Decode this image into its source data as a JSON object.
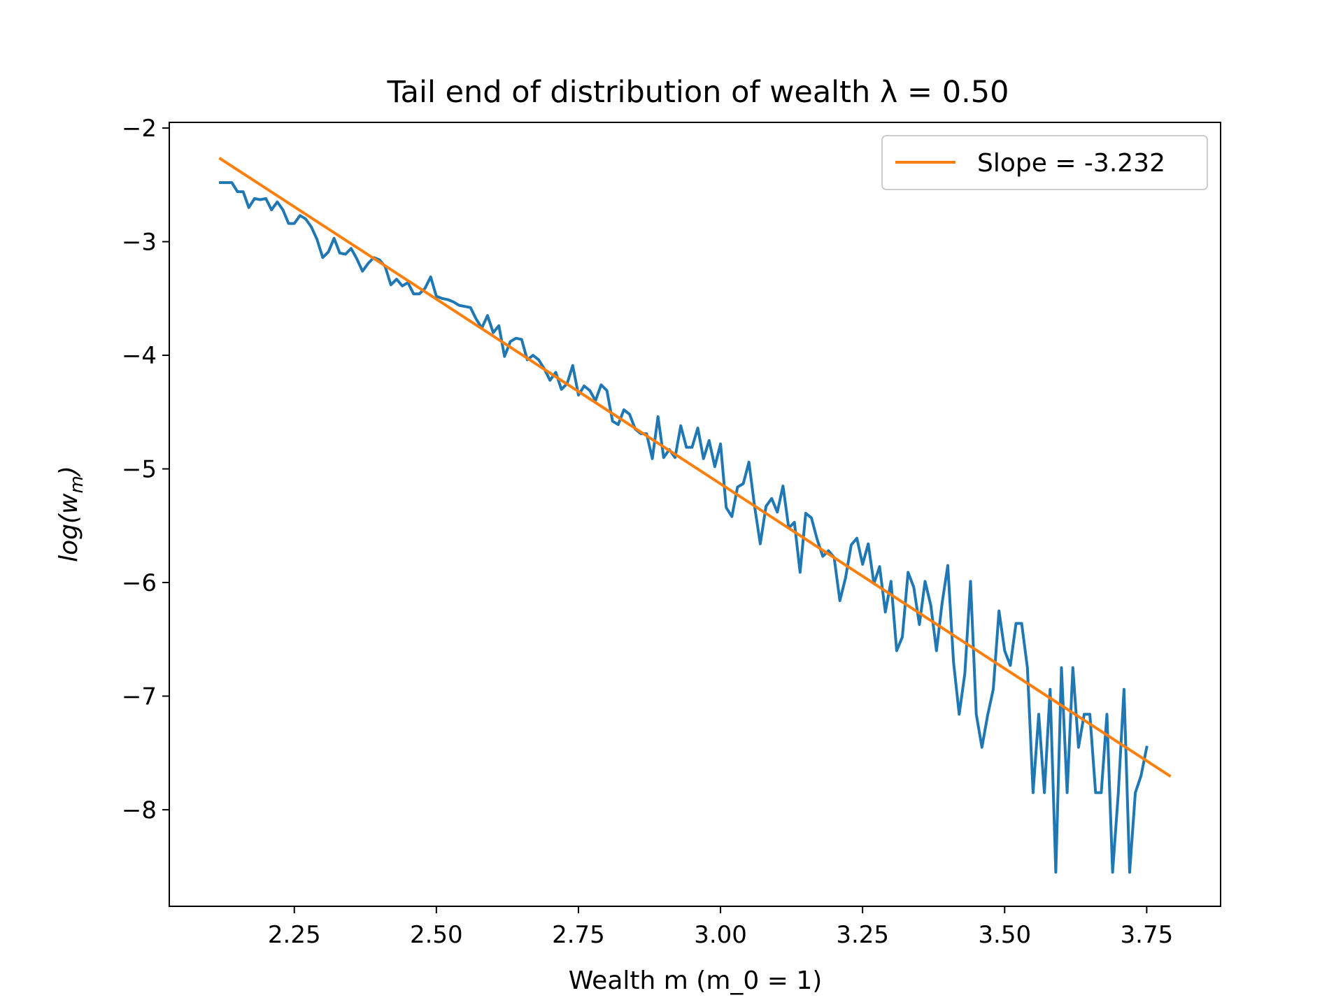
{
  "chart_data": {
    "type": "line",
    "title": "Tail end of distribution of wealth λ = 0.50",
    "xlabel": "Wealth m (m_0 = 1)",
    "ylabel": {
      "base": "log(w",
      "sub": "m",
      "close": ")"
    },
    "xlim": [
      2.03,
      3.88
    ],
    "ylim": [
      -8.85,
      -1.95
    ],
    "xticks": [
      2.25,
      2.5,
      2.75,
      3.0,
      3.25,
      3.5,
      3.75
    ],
    "xtick_labels": [
      "2.25",
      "2.50",
      "2.75",
      "3.00",
      "3.25",
      "3.50",
      "3.75"
    ],
    "yticks": [
      -2,
      -3,
      -4,
      -5,
      -6,
      -7,
      -8
    ],
    "ytick_labels": [
      "−2",
      "−3",
      "−4",
      "−5",
      "−6",
      "−7",
      "−8"
    ],
    "grid": false,
    "legend": {
      "placement": "top-right",
      "entries": [
        "Slope = -3.232"
      ]
    },
    "colors": {
      "data": "#1f77b4",
      "fit": "#ff7f0e"
    },
    "series": [
      {
        "values": [
          [
            2.12,
            -2.48
          ],
          [
            2.13,
            -2.48
          ],
          [
            2.14,
            -2.48
          ],
          [
            2.15,
            -2.56
          ],
          [
            2.16,
            -2.56
          ],
          [
            2.17,
            -2.7
          ],
          [
            2.18,
            -2.62
          ],
          [
            2.19,
            -2.63
          ],
          [
            2.2,
            -2.62
          ],
          [
            2.21,
            -2.72
          ],
          [
            2.22,
            -2.65
          ],
          [
            2.23,
            -2.72
          ],
          [
            2.24,
            -2.84
          ],
          [
            2.25,
            -2.84
          ],
          [
            2.26,
            -2.77
          ],
          [
            2.27,
            -2.8
          ],
          [
            2.28,
            -2.87
          ],
          [
            2.29,
            -2.98
          ],
          [
            2.3,
            -3.14
          ],
          [
            2.31,
            -3.09
          ],
          [
            2.32,
            -2.97
          ],
          [
            2.33,
            -3.1
          ],
          [
            2.34,
            -3.11
          ],
          [
            2.35,
            -3.06
          ],
          [
            2.36,
            -3.15
          ],
          [
            2.37,
            -3.26
          ],
          [
            2.38,
            -3.19
          ],
          [
            2.39,
            -3.14
          ],
          [
            2.4,
            -3.16
          ],
          [
            2.41,
            -3.22
          ],
          [
            2.42,
            -3.38
          ],
          [
            2.43,
            -3.33
          ],
          [
            2.44,
            -3.39
          ],
          [
            2.45,
            -3.36
          ],
          [
            2.46,
            -3.46
          ],
          [
            2.47,
            -3.46
          ],
          [
            2.48,
            -3.41
          ],
          [
            2.49,
            -3.31
          ],
          [
            2.5,
            -3.48
          ],
          [
            2.51,
            -3.5
          ],
          [
            2.52,
            -3.51
          ],
          [
            2.53,
            -3.53
          ],
          [
            2.54,
            -3.56
          ],
          [
            2.55,
            -3.57
          ],
          [
            2.56,
            -3.58
          ],
          [
            2.57,
            -3.68
          ],
          [
            2.58,
            -3.76
          ],
          [
            2.59,
            -3.65
          ],
          [
            2.6,
            -3.8
          ],
          [
            2.61,
            -3.74
          ],
          [
            2.62,
            -4.01
          ],
          [
            2.63,
            -3.88
          ],
          [
            2.64,
            -3.85
          ],
          [
            2.65,
            -3.86
          ],
          [
            2.66,
            -4.04
          ],
          [
            2.67,
            -4.0
          ],
          [
            2.68,
            -4.04
          ],
          [
            2.69,
            -4.12
          ],
          [
            2.7,
            -4.22
          ],
          [
            2.71,
            -4.15
          ],
          [
            2.72,
            -4.3
          ],
          [
            2.73,
            -4.25
          ],
          [
            2.74,
            -4.09
          ],
          [
            2.75,
            -4.35
          ],
          [
            2.76,
            -4.27
          ],
          [
            2.77,
            -4.31
          ],
          [
            2.78,
            -4.4
          ],
          [
            2.79,
            -4.26
          ],
          [
            2.8,
            -4.31
          ],
          [
            2.81,
            -4.58
          ],
          [
            2.82,
            -4.61
          ],
          [
            2.83,
            -4.48
          ],
          [
            2.84,
            -4.52
          ],
          [
            2.85,
            -4.65
          ],
          [
            2.86,
            -4.69
          ],
          [
            2.87,
            -4.69
          ],
          [
            2.88,
            -4.91
          ],
          [
            2.89,
            -4.54
          ],
          [
            2.9,
            -4.9
          ],
          [
            2.91,
            -4.83
          ],
          [
            2.92,
            -4.9
          ],
          [
            2.93,
            -4.62
          ],
          [
            2.94,
            -4.81
          ],
          [
            2.95,
            -4.81
          ],
          [
            2.96,
            -4.64
          ],
          [
            2.97,
            -4.91
          ],
          [
            2.98,
            -4.75
          ],
          [
            2.99,
            -4.98
          ],
          [
            3.0,
            -4.78
          ],
          [
            3.01,
            -5.34
          ],
          [
            3.02,
            -5.42
          ],
          [
            3.03,
            -5.16
          ],
          [
            3.04,
            -5.13
          ],
          [
            3.05,
            -4.94
          ],
          [
            3.06,
            -5.33
          ],
          [
            3.07,
            -5.66
          ],
          [
            3.08,
            -5.33
          ],
          [
            3.09,
            -5.26
          ],
          [
            3.1,
            -5.38
          ],
          [
            3.11,
            -5.15
          ],
          [
            3.12,
            -5.52
          ],
          [
            3.13,
            -5.47
          ],
          [
            3.14,
            -5.91
          ],
          [
            3.15,
            -5.39
          ],
          [
            3.16,
            -5.43
          ],
          [
            3.17,
            -5.62
          ],
          [
            3.18,
            -5.77
          ],
          [
            3.19,
            -5.72
          ],
          [
            3.2,
            -5.78
          ],
          [
            3.21,
            -6.16
          ],
          [
            3.22,
            -5.96
          ],
          [
            3.23,
            -5.67
          ],
          [
            3.24,
            -5.61
          ],
          [
            3.25,
            -5.84
          ],
          [
            3.26,
            -5.66
          ],
          [
            3.27,
            -6.01
          ],
          [
            3.28,
            -5.86
          ],
          [
            3.29,
            -6.26
          ],
          [
            3.3,
            -5.99
          ],
          [
            3.31,
            -6.6
          ],
          [
            3.32,
            -6.48
          ],
          [
            3.33,
            -5.91
          ],
          [
            3.34,
            -6.04
          ],
          [
            3.35,
            -6.37
          ],
          [
            3.36,
            -5.99
          ],
          [
            3.37,
            -6.2
          ],
          [
            3.38,
            -6.6
          ],
          [
            3.39,
            -6.18
          ],
          [
            3.4,
            -5.85
          ],
          [
            3.41,
            -6.7
          ],
          [
            3.42,
            -7.16
          ],
          [
            3.43,
            -6.8
          ],
          [
            3.44,
            -5.99
          ],
          [
            3.45,
            -7.16
          ],
          [
            3.46,
            -7.45
          ],
          [
            3.47,
            -7.17
          ],
          [
            3.48,
            -6.94
          ],
          [
            3.49,
            -6.25
          ],
          [
            3.5,
            -6.6
          ],
          [
            3.51,
            -6.73
          ],
          [
            3.52,
            -6.36
          ],
          [
            3.53,
            -6.36
          ],
          [
            3.54,
            -6.75
          ],
          [
            3.55,
            -7.85
          ],
          [
            3.56,
            -7.16
          ],
          [
            3.57,
            -7.85
          ],
          [
            3.58,
            -6.94
          ],
          [
            3.59,
            -8.55
          ],
          [
            3.6,
            -6.75
          ],
          [
            3.61,
            -7.85
          ],
          [
            3.62,
            -6.75
          ],
          [
            3.63,
            -7.45
          ],
          [
            3.64,
            -7.16
          ],
          [
            3.65,
            -7.16
          ],
          [
            3.66,
            -7.85
          ],
          [
            3.67,
            -7.85
          ],
          [
            3.68,
            -7.16
          ],
          [
            3.69,
            -8.55
          ],
          [
            3.7,
            -7.85
          ],
          [
            3.71,
            -6.94
          ],
          [
            3.72,
            -8.55
          ],
          [
            3.73,
            -7.85
          ],
          [
            3.74,
            -7.7
          ],
          [
            3.75,
            -7.45
          ]
        ]
      },
      {
        "name": "Slope = -3.232",
        "values": [
          [
            2.12,
            -2.27
          ],
          [
            3.79,
            -7.7
          ]
        ]
      }
    ]
  }
}
